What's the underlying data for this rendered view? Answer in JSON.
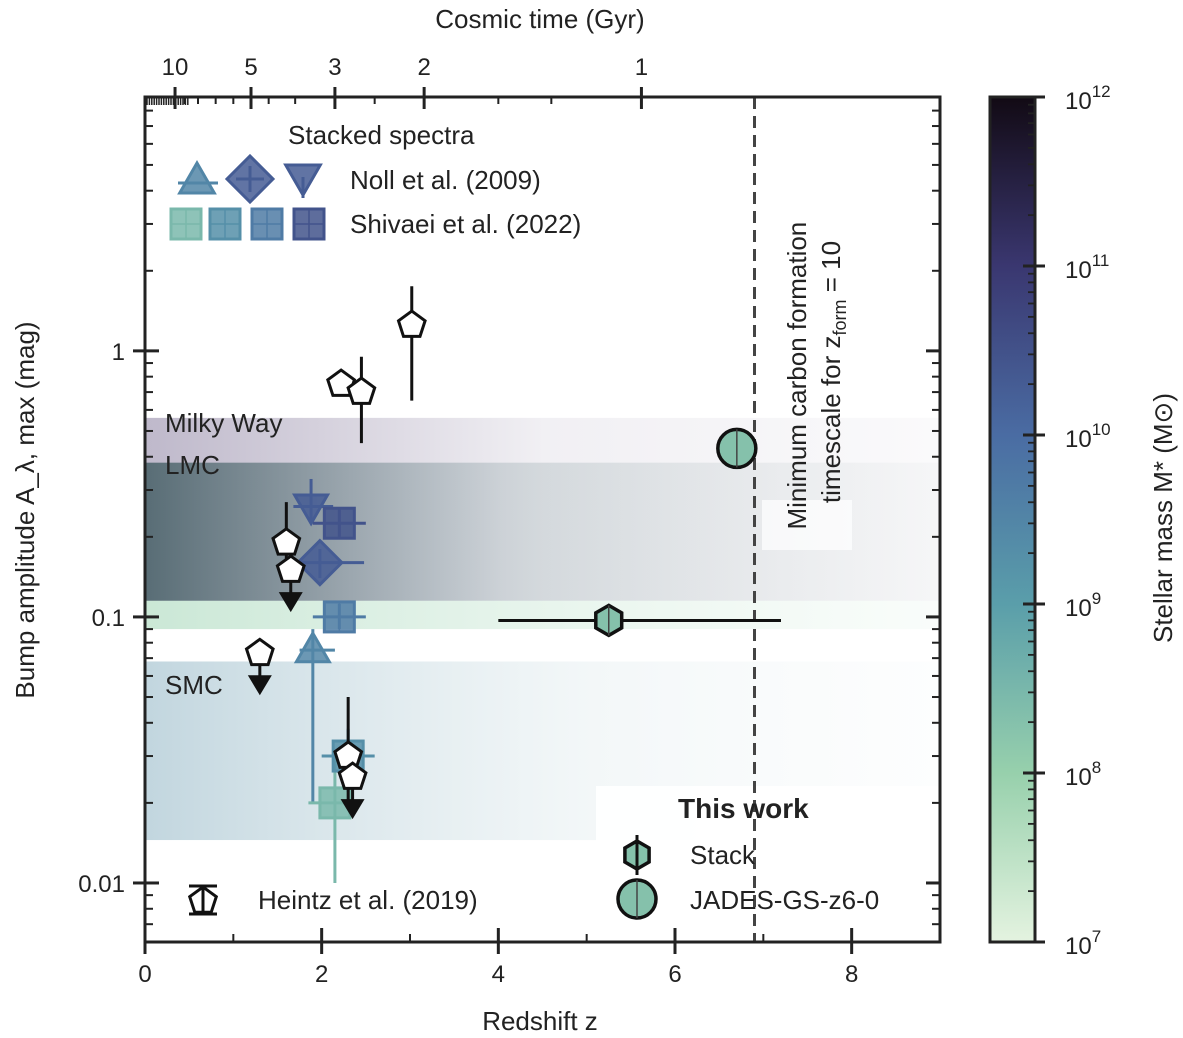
{
  "chart_data": {
    "type": "scatter",
    "xlabel": "Redshift z",
    "ylabel": "Bump amplitude A_λ, max (mag)",
    "top_axis_label": "Cosmic time (Gyr)",
    "colorbar_label": "Stellar mass M* (M⊙)",
    "xlim": [
      0,
      9
    ],
    "ylim": [
      0.006,
      9
    ],
    "y_scale": "log",
    "colorbar_range": [
      10000000.0,
      1000000000000.0
    ],
    "colorbar_scale": "log",
    "x_ticks": [
      0,
      2,
      4,
      6,
      8
    ],
    "x_tick_labels": [
      "0",
      "2",
      "4",
      "6",
      "8"
    ],
    "y_ticks": [
      0.01,
      0.1,
      1
    ],
    "y_tick_labels": [
      "0.01",
      "0.1",
      "1"
    ],
    "top_ticks": [
      {
        "label": "10",
        "z": 0.34
      },
      {
        "label": "5",
        "z": 1.2
      },
      {
        "label": "3",
        "z": 2.15
      },
      {
        "label": "2",
        "z": 3.16
      },
      {
        "label": "1",
        "z": 5.62
      }
    ],
    "colorbar_ticks": [
      {
        "value": 10000000.0,
        "label": "10",
        "exp": "7"
      },
      {
        "value": 100000000.0,
        "label": "10",
        "exp": "8"
      },
      {
        "value": 1000000000.0,
        "label": "10",
        "exp": "9"
      },
      {
        "value": 10000000000.0,
        "label": "10",
        "exp": "10"
      },
      {
        "value": 100000000000.0,
        "label": "10",
        "exp": "11"
      },
      {
        "value": 1000000000000.0,
        "label": "10",
        "exp": "12"
      }
    ],
    "bands": [
      {
        "label": "Milky Way",
        "y_min": 0.115,
        "y_max": 0.56,
        "x_max": 9,
        "color": "#8a7fa0"
      },
      {
        "label": "LMC",
        "y_min": 0.115,
        "y_max": 0.38,
        "x_max": 9,
        "color": "#3f5a60"
      },
      {
        "label": "",
        "y_min": 0.09,
        "y_max": 0.115,
        "x_max": 9,
        "color": "#b8dcc8"
      },
      {
        "label": "SMC",
        "y_min": 0.0145,
        "y_max": 0.068,
        "x_max": 9,
        "color": "#9fc0cc"
      }
    ],
    "vline": {
      "x": 6.9,
      "label_line1": "Minimum carbon formation",
      "label_line2": "timescale for z",
      "label_sub": "form",
      "label_tail": " = 10"
    },
    "series": [
      {
        "name": "Noll et al. (2009)",
        "points": [
          {
            "x": 1.9,
            "y": 0.075,
            "xerr": [
              0.15,
              0.25
            ],
            "yerr": [
              0.055,
              0.015
            ],
            "marker": "triangle-up",
            "mass": 3000000000.0
          },
          {
            "x": 1.98,
            "y": 0.16,
            "xerr": [
              0.3,
              0.5
            ],
            "yerr": [
              0.02,
              0.02
            ],
            "marker": "diamond",
            "mass": 20000000000.0
          },
          {
            "x": 1.88,
            "y": 0.26,
            "xerr": [
              0.2,
              0.25
            ],
            "yerr": [
              0.035,
              0.07
            ],
            "marker": "triangle-down",
            "mass": 20000000000.0
          }
        ]
      },
      {
        "name": "Shivaei et al. (2022)",
        "points": [
          {
            "x": 2.15,
            "y": 0.02,
            "xerr": [
              0.3,
              0.3
            ],
            "yerr": [
              0.01,
              0.01
            ],
            "marker": "square",
            "mass": 300000000.0
          },
          {
            "x": 2.3,
            "y": 0.03,
            "xerr": [
              0.3,
              0.3
            ],
            "yerr": [
              0.008,
              0.008
            ],
            "marker": "square",
            "mass": 2000000000.0
          },
          {
            "x": 2.2,
            "y": 0.1,
            "xerr": [
              0.3,
              0.3
            ],
            "yerr": [
              0.01,
              0.012
            ],
            "marker": "square",
            "mass": 5000000000.0
          },
          {
            "x": 2.2,
            "y": 0.225,
            "xerr": [
              0.3,
              0.3
            ],
            "yerr": [
              0.025,
              0.03
            ],
            "marker": "square",
            "mass": 30000000000.0
          }
        ]
      },
      {
        "name": "Heintz et al. (2019)",
        "points": [
          {
            "x": 3.02,
            "y": 1.25,
            "yerr": [
              0.6,
              0.5
            ],
            "marker": "pentagon"
          },
          {
            "x": 2.22,
            "y": 0.75,
            "marker": "pentagon"
          },
          {
            "x": 2.45,
            "y": 0.7,
            "yerr": [
              0.25,
              0.25
            ],
            "marker": "pentagon"
          },
          {
            "x": 1.6,
            "y": 0.19,
            "yerr": [
              0.04,
              0.08
            ],
            "marker": "pentagon"
          },
          {
            "x": 1.65,
            "y": 0.15,
            "upper_limit": true,
            "marker": "pentagon"
          },
          {
            "x": 1.3,
            "y": 0.073,
            "upper_limit": true,
            "marker": "pentagon"
          },
          {
            "x": 2.3,
            "y": 0.03,
            "yerr": [
              0.01,
              0.02
            ],
            "marker": "pentagon"
          },
          {
            "x": 2.35,
            "y": 0.025,
            "upper_limit": true,
            "marker": "pentagon"
          }
        ]
      },
      {
        "name": "Stack",
        "points": [
          {
            "x": 5.25,
            "y": 0.097,
            "xerr": [
              1.25,
              1.95
            ],
            "marker": "hexagon",
            "mass": 200000000.0
          }
        ]
      },
      {
        "name": "JADES-GS-z6-0",
        "points": [
          {
            "x": 6.7,
            "y": 0.43,
            "marker": "circle",
            "mass": 200000000.0
          }
        ]
      }
    ],
    "legend": {
      "stacked_title": "Stacked spectra",
      "noll": "Noll et al. (2009)",
      "shivaei": "Shivaei et al. (2022)",
      "this_work_title": "This work",
      "stack": "Stack",
      "jades": "JADES-GS-z6-0",
      "heintz": "Heintz et al. (2019)"
    },
    "text": {
      "milky_way": "Milky Way",
      "lmc": "LMC",
      "smc": "SMC"
    }
  }
}
